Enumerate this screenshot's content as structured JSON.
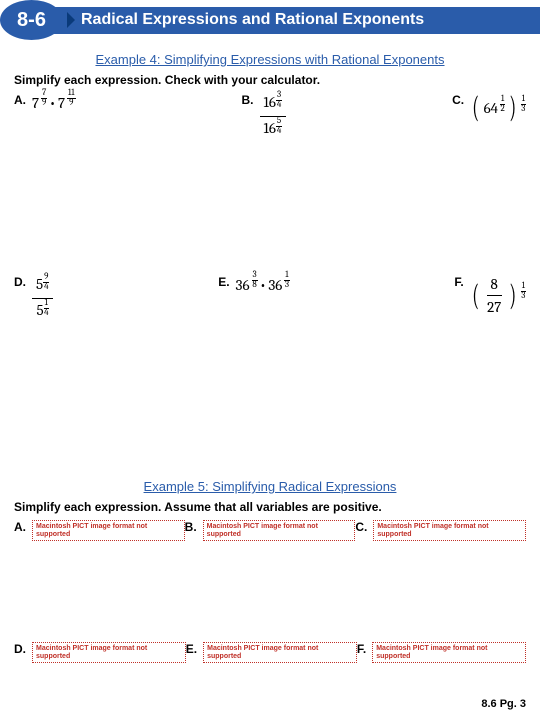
{
  "header": {
    "section_number": "8-6",
    "title": "Radical Expressions and Rational Exponents"
  },
  "example4": {
    "title": "Example 4: Simplifying Expressions with Rational Exponents",
    "instr": "Simplify each expression.  Check with your calculator.",
    "labels": {
      "A": "A.",
      "B": "B.",
      "C": "C.",
      "D": "D.",
      "E": "E.",
      "F": "F."
    },
    "A": {
      "base": "7",
      "exp1_n": "7",
      "exp1_d": "9",
      "dot": "•",
      "exp2_n": "11",
      "exp2_d": "9"
    },
    "B": {
      "base": "16",
      "num_exp_n": "3",
      "num_exp_d": "4",
      "den_exp_n": "5",
      "den_exp_d": "4"
    },
    "C": {
      "inner": "64",
      "inner_exp_n": "1",
      "inner_exp_d": "2",
      "outer_exp_n": "1",
      "outer_exp_d": "3"
    },
    "D": {
      "base": "5",
      "num_exp_n": "9",
      "num_exp_d": "4",
      "den_exp_n": "1",
      "den_exp_d": "4"
    },
    "E": {
      "base": "36",
      "dot": "•",
      "exp1_n": "3",
      "exp1_d": "8",
      "exp2_n": "1",
      "exp2_d": "3"
    },
    "F": {
      "num": "8",
      "den": "27",
      "outer_exp_n": "1",
      "outer_exp_d": "3"
    }
  },
  "example5": {
    "title": "Example 5: Simplifying Radical Expressions",
    "instr": "Simplify each expression. Assume that all variables are positive.",
    "labels": {
      "A": "A.",
      "B": "B.",
      "C": "C.",
      "D": "D.",
      "E": "E.",
      "F": "F."
    },
    "placeholder": "Macintosh PICT\nimage format\nnot supported"
  },
  "footer": {
    "text": "8.6 Pg. 3"
  }
}
